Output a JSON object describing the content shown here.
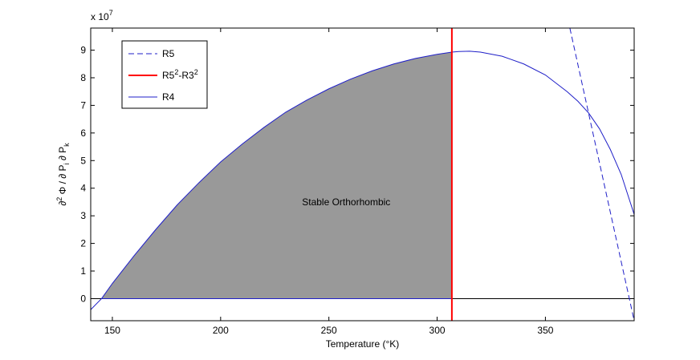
{
  "chart_data": {
    "type": "area",
    "title": "",
    "xlabel": "Temperature (°K)",
    "ylabel": "∂² Φ / ∂ P_i ∂ P_k",
    "ylabel_parts": {
      "main": "∂",
      "sup": "2",
      "mid": " Φ / ∂ P",
      "sub1": "i",
      "mid2": " ∂ P",
      "sub2": "k"
    },
    "y_scale_label": "x 10",
    "y_scale_exponent": "7",
    "xlim": [
      140,
      391
    ],
    "ylim": [
      -0.8,
      9.8
    ],
    "y_multiplier": 10000000,
    "xticks": [
      150,
      200,
      250,
      300,
      350
    ],
    "yticks": [
      0,
      1,
      2,
      3,
      4,
      5,
      6,
      7,
      8,
      9
    ],
    "xtick_labels": [
      "150",
      "200",
      "250",
      "300",
      "350"
    ],
    "ytick_labels": [
      "0",
      "1",
      "2",
      "3",
      "4",
      "5",
      "6",
      "7",
      "8",
      "9"
    ],
    "grid": false,
    "legend_position": "top-left",
    "legend": [
      {
        "label": "R5",
        "label_sup": "",
        "style": "dashed",
        "color": "#1f1fc8"
      },
      {
        "label": "R5",
        "label_sup": "2",
        "label_mid": "-R3",
        "label_sup2": "2",
        "style": "solid",
        "color": "#ff0000"
      },
      {
        "label": "R4",
        "label_sup": "",
        "style": "solid",
        "color": "#1f1fc8"
      }
    ],
    "series": [
      {
        "name": "R4",
        "style": "solid",
        "color": "#1f1fc8",
        "x": [
          140,
          145,
          150,
          160,
          170,
          180,
          190,
          200,
          210,
          220,
          230,
          240,
          250,
          260,
          270,
          280,
          290,
          300,
          306.8,
          310,
          315,
          320,
          330,
          340,
          350,
          360,
          365,
          370,
          375,
          380,
          385,
          391
        ],
        "y": [
          -0.4,
          0.0,
          0.55,
          1.55,
          2.5,
          3.4,
          4.2,
          4.95,
          5.6,
          6.2,
          6.75,
          7.2,
          7.6,
          7.95,
          8.25,
          8.5,
          8.7,
          8.85,
          8.93,
          8.95,
          8.96,
          8.93,
          8.78,
          8.5,
          8.1,
          7.5,
          7.15,
          6.72,
          6.15,
          5.4,
          4.5,
          3.05
        ]
      },
      {
        "name": "R5",
        "style": "dashed",
        "color": "#1f1fc8",
        "x": [
          361.3,
          391
        ],
        "y": [
          9.8,
          -0.8
        ]
      },
      {
        "name": "R5²-R3²",
        "style": "solid",
        "color": "#ff0000",
        "x": [
          306.8,
          306.8
        ],
        "y": [
          -0.8,
          9.8
        ]
      }
    ],
    "shaded_region": {
      "x_start": 145,
      "x_end": 306.8,
      "color": "#999999",
      "label": "Stable Orthorhombic"
    },
    "annotation": {
      "text": "Stable Orthorhombic",
      "x": 258,
      "y": 3.5
    },
    "zero_line": {
      "y": 0,
      "color": "#000000"
    }
  }
}
